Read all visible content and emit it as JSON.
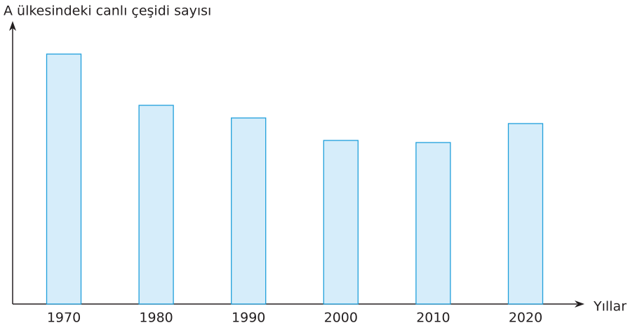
{
  "chart_data": {
    "type": "bar",
    "y_label": "A ülkesindeki canlı çeşidi sayısı",
    "x_label": "Yıllar",
    "categories": [
      "1970",
      "1980",
      "1990",
      "2000",
      "2010",
      "2020"
    ],
    "values": [
      356,
      283,
      265,
      233,
      230,
      257
    ],
    "color": "#d6edfa",
    "edge_color": "#1e9fdb",
    "ylim": [
      0,
      400
    ]
  }
}
